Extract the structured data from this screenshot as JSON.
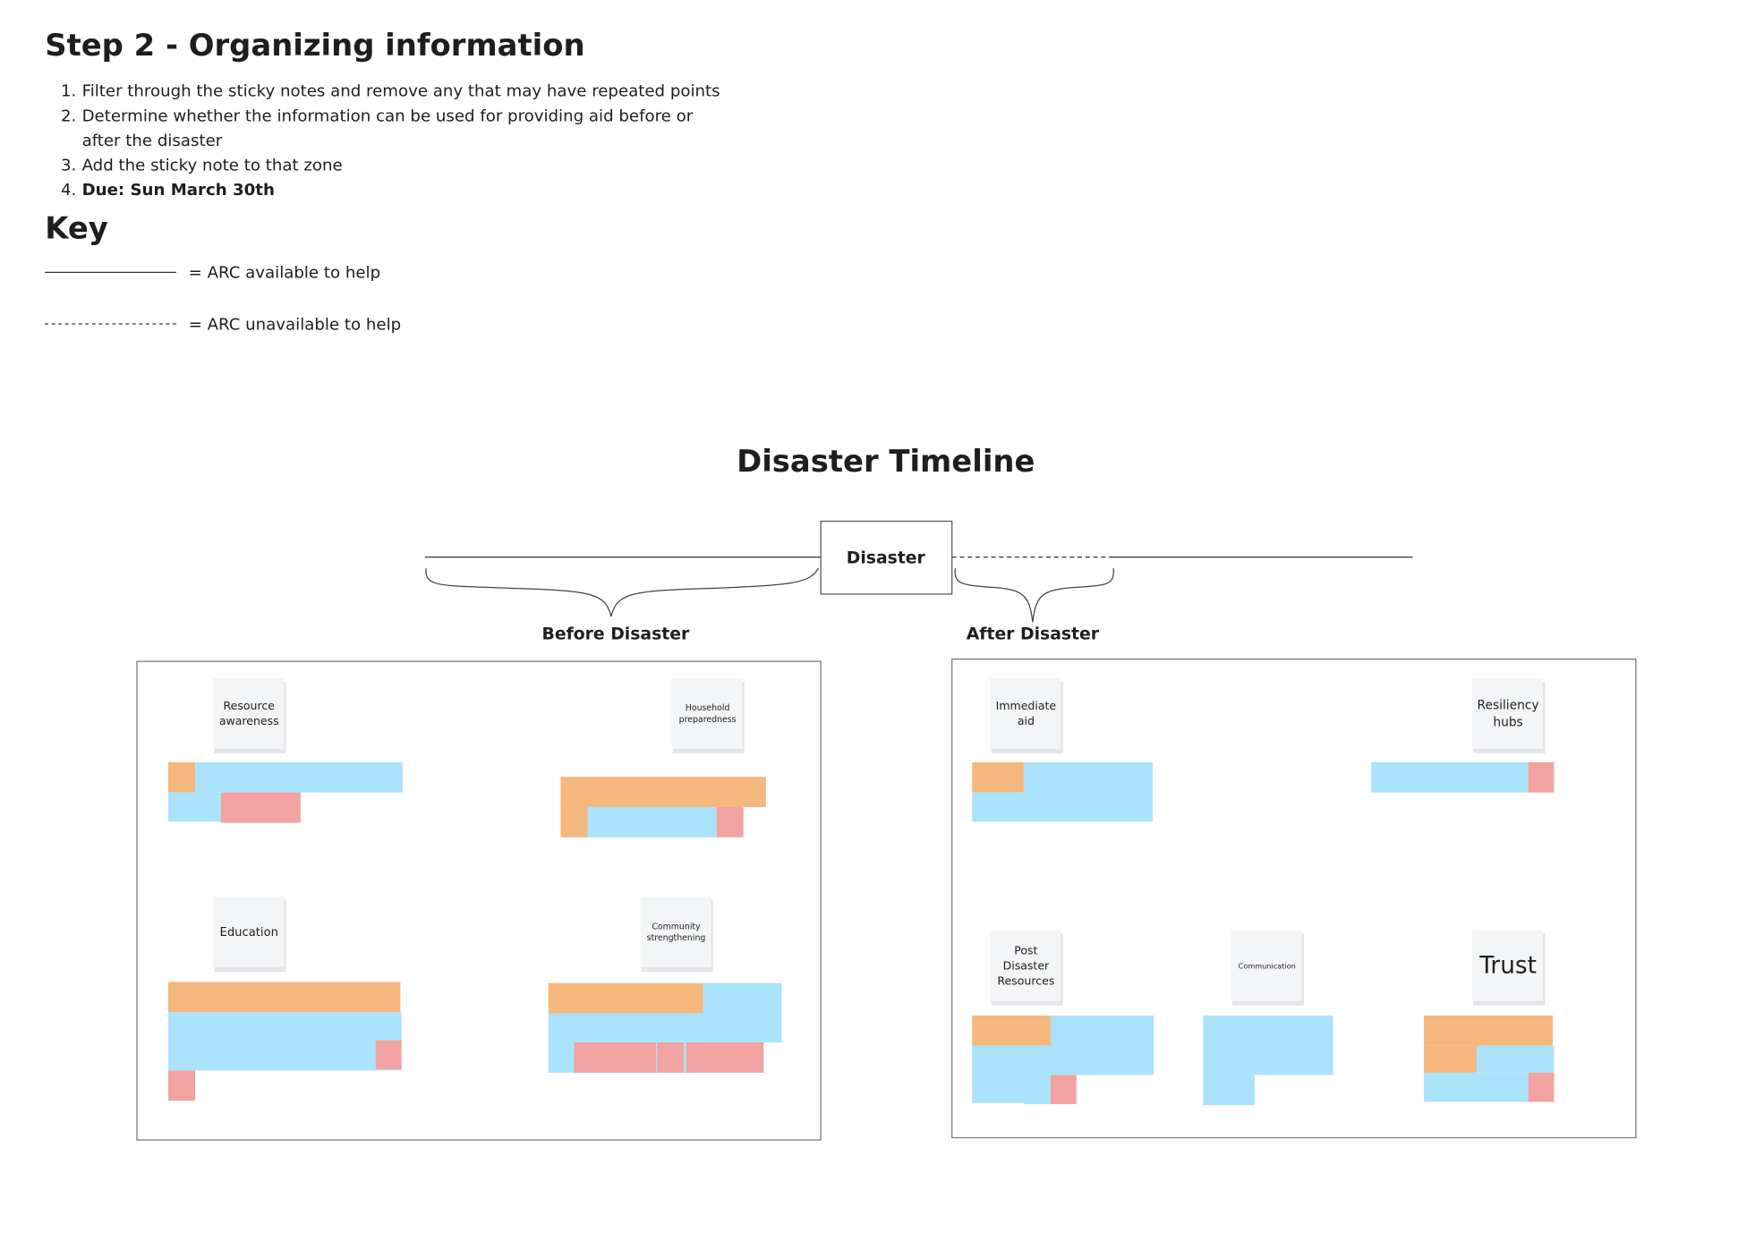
{
  "header": {
    "title": "Step 2 - Organizing information",
    "steps": [
      {
        "number": "1.",
        "lines": [
          "Filter through the sticky notes and remove any that may have repeated points"
        ]
      },
      {
        "number": "2.",
        "lines": [
          "Determine whether the information can be used for providing aid before or",
          "after the disaster"
        ]
      },
      {
        "number": "3.",
        "lines": [
          "Add the sticky note to that zone"
        ]
      },
      {
        "number": "4.",
        "lines": [
          "Due: Sun March 30th"
        ]
      }
    ]
  },
  "key": {
    "title": "Key",
    "items": [
      "= ARC available to help",
      "= ARC unavailable to help"
    ]
  },
  "timeline": {
    "title": "Disaster Timeline",
    "event": "Disaster",
    "zones": [
      {
        "label": "Before Disaster",
        "notes": [
          {
            "lines": [
              "Resource",
              "awareness"
            ]
          },
          {
            "lines": [
              "Household",
              "preparedness"
            ]
          },
          {
            "lines": [
              "Education"
            ]
          },
          {
            "lines": [
              "Community",
              "strengthening"
            ]
          }
        ]
      },
      {
        "label": "After Disaster",
        "notes": [
          {
            "lines": [
              "Immediate",
              "aid"
            ]
          },
          {
            "lines": [
              "Resiliency",
              "hubs"
            ]
          },
          {
            "lines": [
              "Post",
              "Disaster",
              "Resources"
            ]
          },
          {
            "lines": [
              "Communication"
            ]
          },
          {
            "lines": [
              "Trust"
            ]
          }
        ]
      }
    ]
  }
}
